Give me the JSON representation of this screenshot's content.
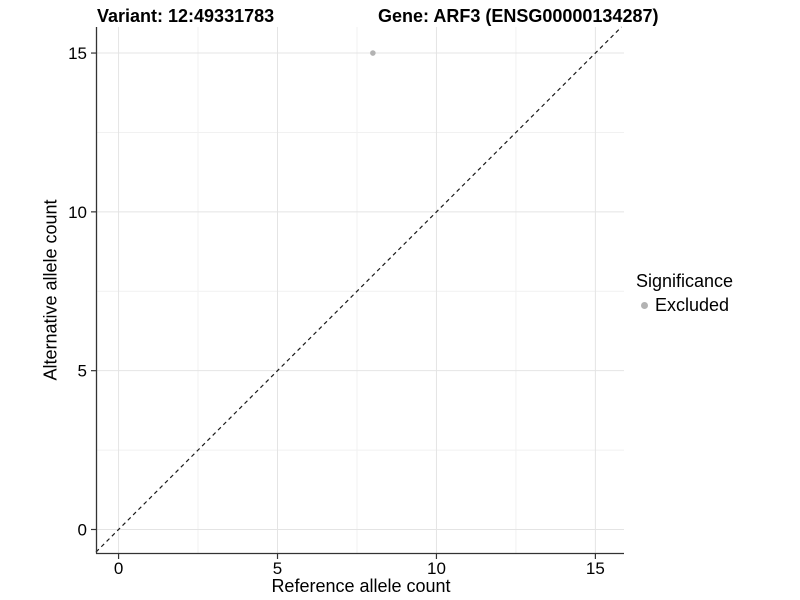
{
  "title": {
    "variant": "Variant: 12:49331783",
    "gene": "Gene: ARF3 (ENSG00000134287)"
  },
  "chart_data": {
    "type": "scatter",
    "title": "Variant: 12:49331783   Gene: ARF3 (ENSG00000134287)",
    "xlabel": "Reference allele count",
    "ylabel": "Alternative allele count",
    "xlim": [
      -0.71,
      15.9
    ],
    "ylim": [
      -0.74,
      15.82
    ],
    "x_ticks": [
      0,
      5,
      10,
      15
    ],
    "y_ticks": [
      0,
      5,
      10,
      15
    ],
    "x_minor_gridlines": [
      2.5,
      7.5,
      12.5
    ],
    "y_minor_gridlines": [
      2.5,
      7.5,
      12.5
    ],
    "grid": true,
    "points": [
      {
        "x": 8,
        "y": 15,
        "series": "Excluded"
      }
    ],
    "abline": {
      "slope": 1,
      "intercept": 0,
      "style": "dashed"
    },
    "legend": {
      "title": "Significance",
      "position": "right",
      "items": [
        {
          "label": "Excluded",
          "color": "#b3b3b3"
        }
      ]
    },
    "colors": {
      "point": "#b3b3b3",
      "grid_major": "#e4e4e4",
      "grid_minor": "#f1f1f1",
      "axis": "#333333",
      "abline": "#1a1a1a",
      "background": "#ffffff"
    }
  },
  "legend": {
    "title": "Significance",
    "items": [
      {
        "label": "Excluded",
        "color": "#b3b3b3"
      }
    ]
  }
}
